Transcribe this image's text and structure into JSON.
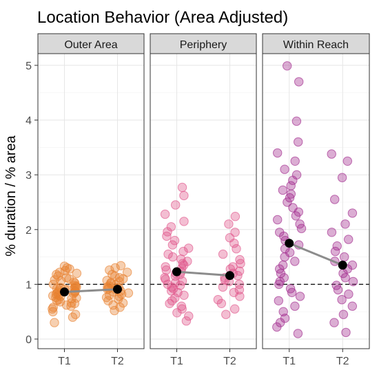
{
  "chart_data": {
    "type": "scatter",
    "title": "Location Behavior (Area Adjusted)",
    "ylabel": "% duration / % area",
    "xlabel": "",
    "categories": [
      "T1",
      "T2"
    ],
    "yticks": [
      0,
      1,
      2,
      3,
      4,
      5
    ],
    "ylim": [
      -0.1,
      5.2
    ],
    "reference_line": 1,
    "grid": true,
    "facets": [
      {
        "name": "Outer Area",
        "color": "#E8812F",
        "means": [
          0.86,
          0.91
        ],
        "points": {
          "T1": [
            0.3,
            0.4,
            0.45,
            0.5,
            0.55,
            0.58,
            0.6,
            0.62,
            0.65,
            0.66,
            0.68,
            0.7,
            0.72,
            0.74,
            0.75,
            0.76,
            0.78,
            0.79,
            0.8,
            0.82,
            0.83,
            0.84,
            0.85,
            0.86,
            0.87,
            0.88,
            0.89,
            0.9,
            0.91,
            0.92,
            0.93,
            0.94,
            0.95,
            0.96,
            0.98,
            1.0,
            1.02,
            1.04,
            1.06,
            1.08,
            1.1,
            1.12,
            1.15,
            1.18,
            1.2,
            1.22,
            1.25,
            1.28,
            1.3,
            1.33
          ],
          "T2": [
            0.52,
            0.58,
            0.62,
            0.66,
            0.7,
            0.73,
            0.76,
            0.78,
            0.8,
            0.82,
            0.84,
            0.86,
            0.88,
            0.9,
            0.91,
            0.92,
            0.94,
            0.95,
            0.97,
            0.99,
            1.01,
            1.03,
            1.05,
            1.07,
            1.1,
            1.12,
            1.15,
            1.18,
            1.22,
            1.26,
            1.3,
            1.34
          ]
        }
      },
      {
        "name": "Periphery",
        "color": "#E0558A",
        "means": [
          1.23,
          1.16
        ],
        "points": {
          "T1": [
            0.33,
            0.42,
            0.48,
            0.55,
            0.6,
            0.65,
            0.7,
            0.75,
            0.8,
            0.85,
            0.88,
            0.92,
            0.95,
            0.98,
            1.0,
            1.03,
            1.06,
            1.09,
            1.12,
            1.15,
            1.18,
            1.2,
            1.23,
            1.26,
            1.29,
            1.32,
            1.35,
            1.38,
            1.42,
            1.46,
            1.5,
            1.55,
            1.6,
            1.66,
            1.72,
            1.8,
            1.88,
            1.96,
            2.05,
            2.15,
            2.28,
            2.45,
            2.62,
            2.77
          ],
          "T2": [
            0.45,
            0.55,
            0.65,
            0.72,
            0.78,
            0.85,
            0.9,
            0.95,
            1.0,
            1.05,
            1.08,
            1.12,
            1.16,
            1.2,
            1.24,
            1.28,
            1.32,
            1.38,
            1.45,
            1.55,
            1.65,
            1.75,
            1.85,
            1.95,
            2.1,
            2.24
          ]
        }
      },
      {
        "name": "Within Reach",
        "color": "#A0288C",
        "means": [
          1.75,
          1.35
        ],
        "points": {
          "T1": [
            0.1,
            0.22,
            0.3,
            0.38,
            0.5,
            0.6,
            0.7,
            0.78,
            0.85,
            0.92,
            1.0,
            1.05,
            1.12,
            1.2,
            1.28,
            1.35,
            1.42,
            1.5,
            1.58,
            1.65,
            1.72,
            1.8,
            1.88,
            1.95,
            2.02,
            2.1,
            2.18,
            2.25,
            2.32,
            2.4,
            2.5,
            2.58,
            2.65,
            2.72,
            2.8,
            2.9,
            3.0,
            3.1,
            3.25,
            3.4,
            3.6,
            3.98,
            4.7,
            4.99
          ],
          "T2": [
            0.12,
            0.3,
            0.45,
            0.6,
            0.72,
            0.82,
            0.9,
            0.98,
            1.05,
            1.12,
            1.2,
            1.28,
            1.35,
            1.42,
            1.5,
            1.6,
            1.7,
            1.82,
            1.95,
            2.1,
            2.3,
            2.55,
            2.95,
            3.25,
            3.38
          ]
        }
      }
    ]
  }
}
